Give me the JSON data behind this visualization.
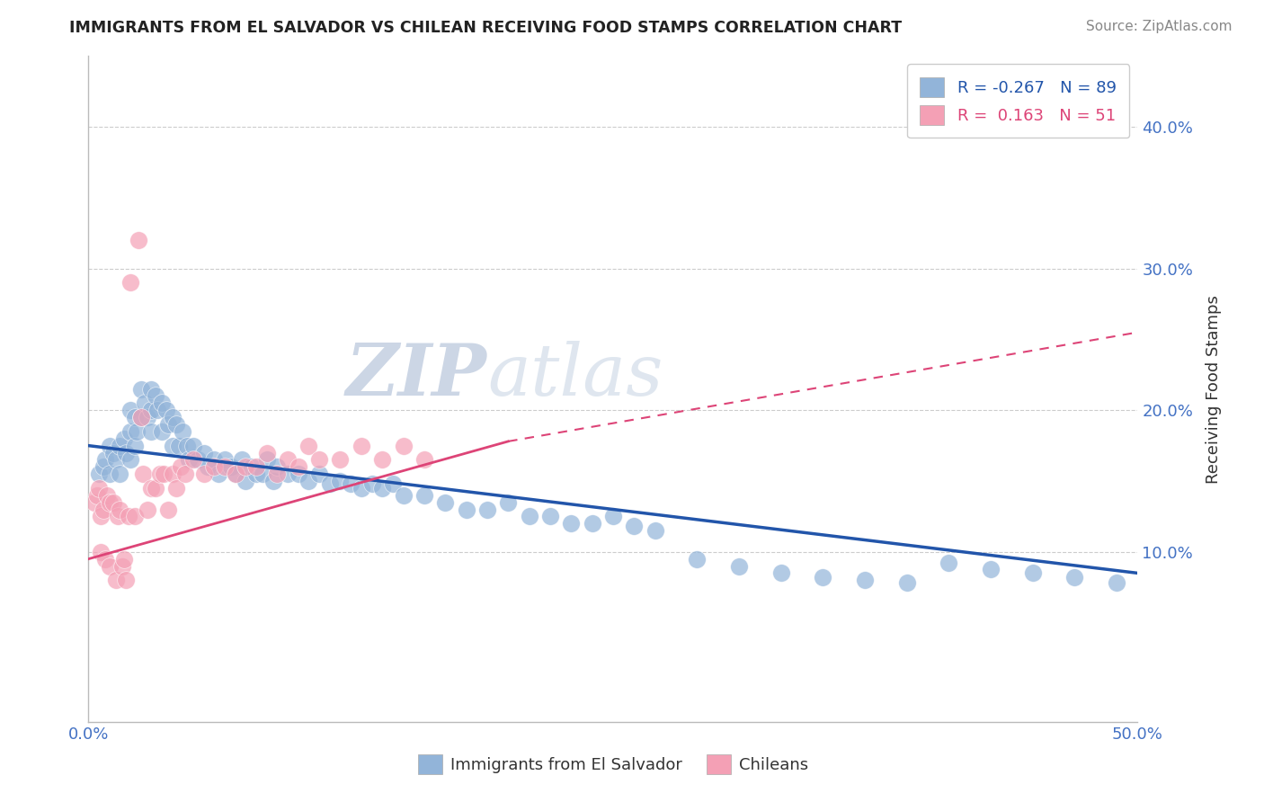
{
  "title": "IMMIGRANTS FROM EL SALVADOR VS CHILEAN RECEIVING FOOD STAMPS CORRELATION CHART",
  "source": "Source: ZipAtlas.com",
  "ylabel": "Receiving Food Stamps",
  "xlim": [
    0.0,
    0.5
  ],
  "ylim": [
    -0.02,
    0.45
  ],
  "yticks": [
    0.1,
    0.2,
    0.3,
    0.4
  ],
  "ytick_labels": [
    "10.0%",
    "20.0%",
    "30.0%",
    "40.0%"
  ],
  "xticks": [
    0.0,
    0.1,
    0.2,
    0.3,
    0.4,
    0.5
  ],
  "xtick_labels": [
    "0.0%",
    "",
    "",
    "",
    "",
    "50.0%"
  ],
  "legend_blue_r": "-0.267",
  "legend_blue_n": "89",
  "legend_pink_r": "0.163",
  "legend_pink_n": "51",
  "blue_color": "#92b4d9",
  "pink_color": "#f4a0b5",
  "blue_line_color": "#2255aa",
  "pink_line_color": "#dd4477",
  "axis_tick_color": "#4472c4",
  "watermark_zip_color": "#b8cce4",
  "watermark_atlas_color": "#c8d8e8",
  "grid_color": "#cccccc",
  "background_color": "#ffffff",
  "blue_scatter_x": [
    0.005,
    0.007,
    0.008,
    0.01,
    0.01,
    0.012,
    0.013,
    0.015,
    0.015,
    0.017,
    0.018,
    0.02,
    0.02,
    0.02,
    0.022,
    0.022,
    0.023,
    0.025,
    0.025,
    0.027,
    0.028,
    0.03,
    0.03,
    0.03,
    0.032,
    0.033,
    0.035,
    0.035,
    0.037,
    0.038,
    0.04,
    0.04,
    0.042,
    0.043,
    0.045,
    0.047,
    0.048,
    0.05,
    0.052,
    0.055,
    0.057,
    0.06,
    0.062,
    0.065,
    0.068,
    0.07,
    0.073,
    0.075,
    0.078,
    0.08,
    0.083,
    0.085,
    0.088,
    0.09,
    0.095,
    0.1,
    0.105,
    0.11,
    0.115,
    0.12,
    0.125,
    0.13,
    0.135,
    0.14,
    0.145,
    0.15,
    0.16,
    0.17,
    0.18,
    0.19,
    0.2,
    0.21,
    0.22,
    0.23,
    0.24,
    0.25,
    0.26,
    0.27,
    0.29,
    0.31,
    0.33,
    0.35,
    0.37,
    0.39,
    0.41,
    0.43,
    0.45,
    0.47,
    0.49
  ],
  "blue_scatter_y": [
    0.155,
    0.16,
    0.165,
    0.175,
    0.155,
    0.17,
    0.165,
    0.175,
    0.155,
    0.18,
    0.17,
    0.2,
    0.185,
    0.165,
    0.195,
    0.175,
    0.185,
    0.215,
    0.195,
    0.205,
    0.195,
    0.215,
    0.2,
    0.185,
    0.21,
    0.2,
    0.205,
    0.185,
    0.2,
    0.19,
    0.195,
    0.175,
    0.19,
    0.175,
    0.185,
    0.175,
    0.165,
    0.175,
    0.165,
    0.17,
    0.16,
    0.165,
    0.155,
    0.165,
    0.16,
    0.155,
    0.165,
    0.15,
    0.16,
    0.155,
    0.155,
    0.165,
    0.15,
    0.16,
    0.155,
    0.155,
    0.15,
    0.155,
    0.148,
    0.15,
    0.148,
    0.145,
    0.148,
    0.145,
    0.148,
    0.14,
    0.14,
    0.135,
    0.13,
    0.13,
    0.135,
    0.125,
    0.125,
    0.12,
    0.12,
    0.125,
    0.118,
    0.115,
    0.095,
    0.09,
    0.085,
    0.082,
    0.08,
    0.078,
    0.092,
    0.088,
    0.085,
    0.082,
    0.078
  ],
  "pink_scatter_x": [
    0.003,
    0.004,
    0.005,
    0.006,
    0.006,
    0.007,
    0.008,
    0.009,
    0.01,
    0.01,
    0.012,
    0.013,
    0.014,
    0.015,
    0.016,
    0.017,
    0.018,
    0.019,
    0.02,
    0.022,
    0.024,
    0.025,
    0.026,
    0.028,
    0.03,
    0.032,
    0.034,
    0.036,
    0.038,
    0.04,
    0.042,
    0.044,
    0.046,
    0.05,
    0.055,
    0.06,
    0.065,
    0.07,
    0.075,
    0.08,
    0.085,
    0.09,
    0.095,
    0.1,
    0.105,
    0.11,
    0.12,
    0.13,
    0.14,
    0.15,
    0.16
  ],
  "pink_scatter_y": [
    0.135,
    0.14,
    0.145,
    0.1,
    0.125,
    0.13,
    0.095,
    0.14,
    0.135,
    0.09,
    0.135,
    0.08,
    0.125,
    0.13,
    0.09,
    0.095,
    0.08,
    0.125,
    0.29,
    0.125,
    0.32,
    0.195,
    0.155,
    0.13,
    0.145,
    0.145,
    0.155,
    0.155,
    0.13,
    0.155,
    0.145,
    0.16,
    0.155,
    0.165,
    0.155,
    0.16,
    0.16,
    0.155,
    0.16,
    0.16,
    0.17,
    0.155,
    0.165,
    0.16,
    0.175,
    0.165,
    0.165,
    0.175,
    0.165,
    0.175,
    0.165
  ]
}
